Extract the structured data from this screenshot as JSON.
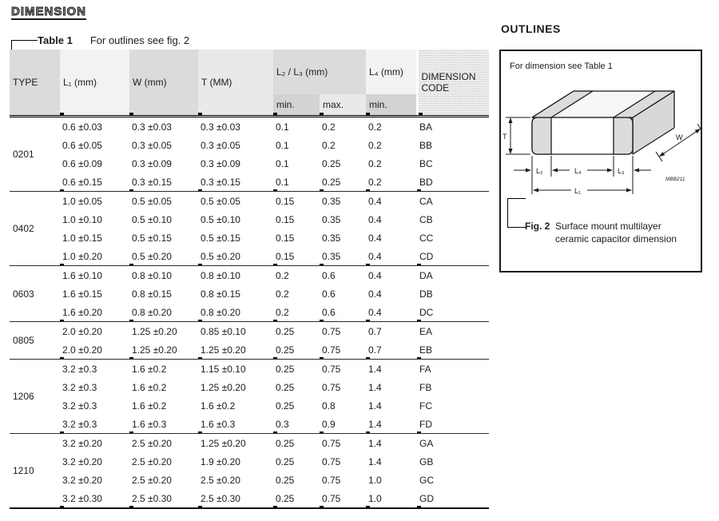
{
  "page": {
    "title": "DIMENSION"
  },
  "table": {
    "caption": {
      "label": "Table 1",
      "note": "For outlines see fig. 2"
    },
    "header": {
      "type": "TYPE",
      "l1": "L₁ (mm)",
      "w": "W (mm)",
      "t": "T (MM)",
      "l2l3": "L₂ / L₃ (mm)",
      "l4": "L₄ (mm)",
      "min1": "min.",
      "max": "max.",
      "min2": "min.",
      "dim_code": "DIMENSION CODE"
    },
    "groups": [
      {
        "type": "0201",
        "rows": [
          {
            "l1": "0.6 ±0.03",
            "w": "0.3 ±0.03",
            "t": "0.3 ±0.03",
            "min1": "0.1",
            "max": "0.2",
            "min2": "0.2",
            "code": "BA"
          },
          {
            "l1": "0.6 ±0.05",
            "w": "0.3 ±0.05",
            "t": "0.3 ±0.05",
            "min1": "0.1",
            "max": "0.2",
            "min2": "0.2",
            "code": "BB"
          },
          {
            "l1": "0.6 ±0.09",
            "w": "0.3 ±0.09",
            "t": "0.3 ±0.09",
            "min1": "0.1",
            "max": "0.25",
            "min2": "0.2",
            "code": "BC"
          },
          {
            "l1": "0.6 ±0.15",
            "w": "0.3 ±0.15",
            "t": "0.3 ±0.15",
            "min1": "0.1",
            "max": "0.25",
            "min2": "0.2",
            "code": "BD"
          }
        ]
      },
      {
        "type": "0402",
        "rows": [
          {
            "l1": "1.0 ±0.05",
            "w": "0.5 ±0.05",
            "t": "0.5 ±0.05",
            "min1": "0.15",
            "max": "0.35",
            "min2": "0.4",
            "code": "CA"
          },
          {
            "l1": "1.0 ±0.10",
            "w": "0.5 ±0.10",
            "t": "0.5 ±0.10",
            "min1": "0.15",
            "max": "0.35",
            "min2": "0.4",
            "code": "CB"
          },
          {
            "l1": "1.0 ±0.15",
            "w": "0.5 ±0.15",
            "t": "0.5 ±0.15",
            "min1": "0.15",
            "max": "0.35",
            "min2": "0.4",
            "code": "CC"
          },
          {
            "l1": "1.0 ±0.20",
            "w": "0.5 ±0.20",
            "t": "0.5 ±0.20",
            "min1": "0.15",
            "max": "0.35",
            "min2": "0.4",
            "code": "CD"
          }
        ]
      },
      {
        "type": "0603",
        "rows": [
          {
            "l1": "1.6 ±0.10",
            "w": "0.8 ±0.10",
            "t": "0.8 ±0.10",
            "min1": "0.2",
            "max": "0.6",
            "min2": "0.4",
            "code": "DA"
          },
          {
            "l1": "1.6 ±0.15",
            "w": "0.8 ±0.15",
            "t": "0.8 ±0.15",
            "min1": "0.2",
            "max": "0.6",
            "min2": "0.4",
            "code": "DB"
          },
          {
            "l1": "1.6 ±0.20",
            "w": "0.8 ±0.20",
            "t": "0.8 ±0.20",
            "min1": "0.2",
            "max": "0.6",
            "min2": "0.4",
            "code": "DC"
          }
        ]
      },
      {
        "type": "0805",
        "rows": [
          {
            "l1": "2.0 ±0.20",
            "w": "1.25 ±0.20",
            "t": "0.85 ±0.10",
            "min1": "0.25",
            "max": "0.75",
            "min2": "0.7",
            "code": "EA"
          },
          {
            "l1": "2.0 ±0.20",
            "w": "1.25 ±0.20",
            "t": "1.25 ±0.20",
            "min1": "0.25",
            "max": "0.75",
            "min2": "0.7",
            "code": "EB"
          }
        ]
      },
      {
        "type": "1206",
        "rows": [
          {
            "l1": "3.2 ±0.3",
            "w": "1.6 ±0.2",
            "t": "1.15 ±0.10",
            "min1": "0.25",
            "max": "0.75",
            "min2": "1.4",
            "code": "FA"
          },
          {
            "l1": "3.2 ±0.3",
            "w": "1.6 ±0.2",
            "t": "1.25 ±0.20",
            "min1": "0.25",
            "max": "0.75",
            "min2": "1.4",
            "code": "FB"
          },
          {
            "l1": "3.2 ±0.3",
            "w": "1.6 ±0.2",
            "t": "1.6 ±0.2",
            "min1": "0.25",
            "max": "0.8",
            "min2": "1.4",
            "code": "FC"
          },
          {
            "l1": "3.2 ±0.3",
            "w": "1.6 ±0.3",
            "t": "1.6 ±0.3",
            "min1": "0.3",
            "max": "0.9",
            "min2": "1.4",
            "code": "FD"
          }
        ]
      },
      {
        "type": "1210",
        "rows": [
          {
            "l1": "3.2 ±0.20",
            "w": "2.5 ±0.20",
            "t": "1.25 ±0.20",
            "min1": "0.25",
            "max": "0.75",
            "min2": "1.4",
            "code": "GA"
          },
          {
            "l1": "3.2 ±0.20",
            "w": "2.5 ±0.20",
            "t": "1.9 ±0.20",
            "min1": "0.25",
            "max": "0.75",
            "min2": "1.4",
            "code": "GB"
          },
          {
            "l1": "3.2 ±0.20",
            "w": "2.5 ±0.20",
            "t": "2.5 ±0.20",
            "min1": "0.25",
            "max": "0.75",
            "min2": "1.0",
            "code": "GC"
          },
          {
            "l1": "3.2 ±0.30",
            "w": "2.5 ±0.30",
            "t": "2.5 ±0.30",
            "min1": "0.25",
            "max": "0.75",
            "min2": "1.0",
            "code": "GD"
          }
        ]
      }
    ]
  },
  "outlines": {
    "title": "OUTLINES",
    "note": "For dimension see Table 1",
    "figure": {
      "labels": {
        "T": "T",
        "W": "W",
        "L1": "L₁",
        "L2": "L₂",
        "L3": "L₃",
        "L4": "L₄"
      },
      "drawing_code": "MBB211"
    },
    "caption": {
      "label": "Fig. 2",
      "text_line1": "Surface mount multilayer",
      "text_line2": "ceramic capacitor dimension"
    }
  }
}
